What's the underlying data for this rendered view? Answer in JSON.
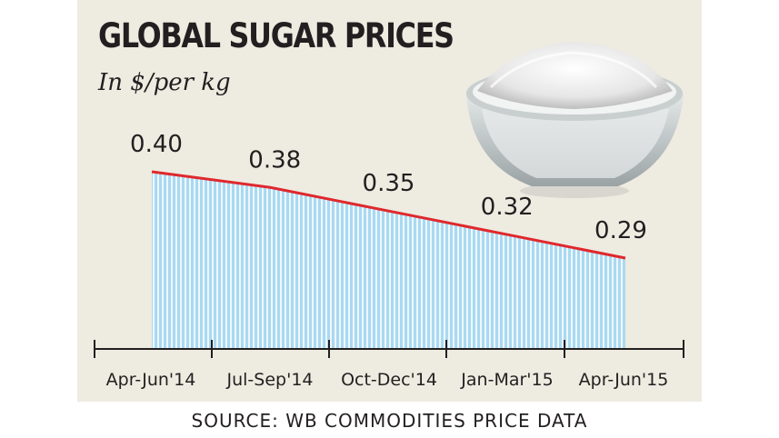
{
  "header": {
    "title": "GLOBAL SUGAR PRICES",
    "subtitle": "In $/per kg"
  },
  "footer": {
    "source": "SOURCE: WB COMMODITIES PRICE DATA"
  },
  "colors": {
    "line": "#e0282c",
    "fill_stripe": "#a9d9f2",
    "background": "#eeebe1",
    "text": "#231f20"
  },
  "illustration": "sugar-bowl",
  "chart_data": {
    "type": "area",
    "title": "GLOBAL SUGAR PRICES",
    "subtitle": "In $/per kg",
    "categories": [
      "Apr-Jun'14",
      "Jul-Sep'14",
      "Oct-Dec'14",
      "Jan-Mar'15",
      "Apr-Jun'15"
    ],
    "values": [
      0.4,
      0.38,
      0.35,
      0.32,
      0.29
    ],
    "data_labels": [
      "0.40",
      "0.38",
      "0.35",
      "0.32",
      "0.29"
    ],
    "unit": "$/per kg",
    "grid": false,
    "legend": "none"
  }
}
